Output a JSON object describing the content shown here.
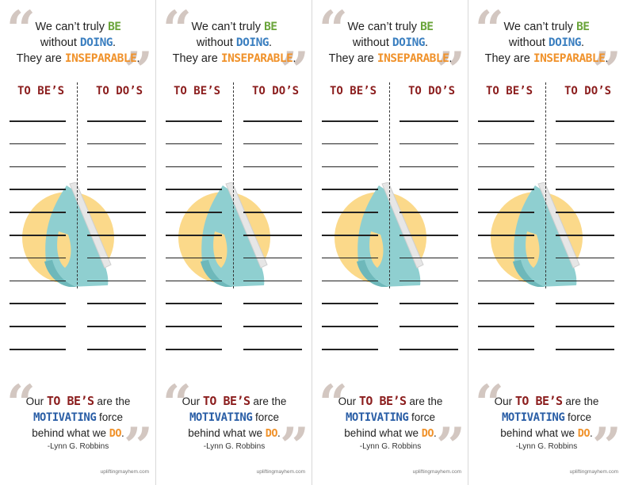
{
  "card_count": 4,
  "top_quote": {
    "line1": "We can’t truly ",
    "be": "BE",
    "line2": "without ",
    "doing": "DOING",
    "period1": ".",
    "line3": "They are ",
    "inseparable": "INSEPARABLE",
    "period2": "."
  },
  "columns": {
    "left": "TO BE’S",
    "right": "TO DO’S"
  },
  "line_rows": 11,
  "bottom_quote": {
    "our": "Our ",
    "to_bes": "TO BE’S",
    "are_the": " are the",
    "motivating": "MOTIVATING",
    "force": " force",
    "behind": "behind what we ",
    "do": "DO",
    "period": "."
  },
  "author": "-Lynn G. Robbins",
  "credit": "upliftingmayhem.com",
  "colors": {
    "green": "#6aa43a",
    "blue": "#3b7fc0",
    "orange": "#f0922b",
    "maroon": "#8b1d1d",
    "navy": "#2a5ea6",
    "sun": "#fbd98a",
    "iron": "#8fcfd0",
    "iron_dark": "#6eb8ba",
    "plate": "#e6e6e6"
  },
  "icons": {
    "artwork": "clothes-iron-icon",
    "backdrop": "sun-circle-icon"
  }
}
